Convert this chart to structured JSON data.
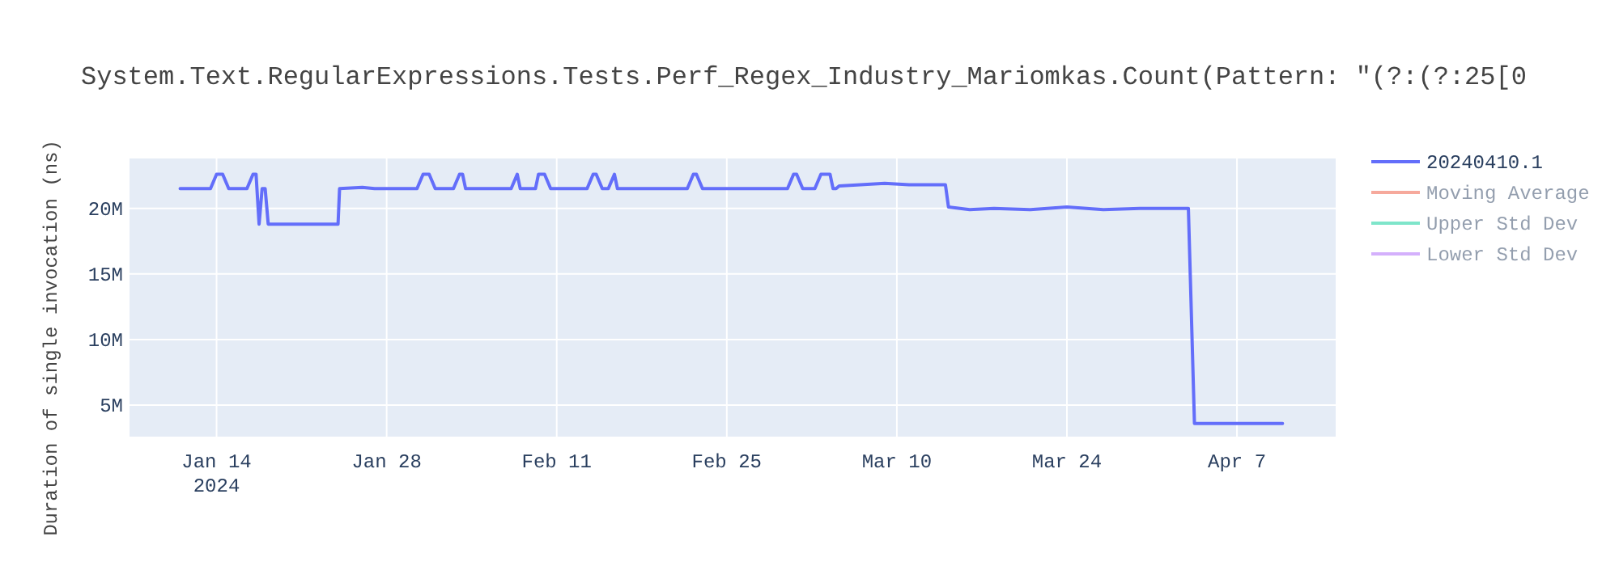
{
  "chart_data": {
    "type": "line",
    "title": "System.Text.RegularExpressions.Tests.Perf_Regex_Industry_Mariomkas.Count(Pattern: \"(?:(?:25[0",
    "ylabel": "Duration of single invocation (ns)",
    "xlim": [
      "2024-01-06T20:00",
      "2024-04-15T03:00"
    ],
    "xticks": [
      {
        "value": "2024-01-14",
        "label": "Jan 14\n2024"
      },
      {
        "value": "2024-01-28",
        "label": "Jan 28"
      },
      {
        "value": "2024-02-11",
        "label": "Feb 11"
      },
      {
        "value": "2024-02-25",
        "label": "Feb 25"
      },
      {
        "value": "2024-03-10",
        "label": "Mar 10"
      },
      {
        "value": "2024-03-24",
        "label": "Mar 24"
      },
      {
        "value": "2024-04-07",
        "label": "Apr 7"
      }
    ],
    "ylim": [
      2600000,
      23800000
    ],
    "yticks": [
      {
        "value": 5000000,
        "label": "5M"
      },
      {
        "value": 10000000,
        "label": "10M"
      },
      {
        "value": 15000000,
        "label": "15M"
      },
      {
        "value": 20000000,
        "label": "20M"
      }
    ],
    "grid": true,
    "legend": "right",
    "series": [
      {
        "name": "20240410.1",
        "color": "#636efa",
        "x": [
          "2024-01-11T00:00",
          "2024-01-13T12:00",
          "2024-01-14T00:00",
          "2024-01-14T12:00",
          "2024-01-15T00:00",
          "2024-01-16T12:00",
          "2024-01-17T00:00",
          "2024-01-17T06:00",
          "2024-01-17T12:00",
          "2024-01-17T18:00",
          "2024-01-18T00:00",
          "2024-01-18T06:00",
          "2024-01-24T00:00",
          "2024-01-24T03:00",
          "2024-01-26T00:00",
          "2024-01-27T00:00",
          "2024-01-30T12:00",
          "2024-01-31T00:00",
          "2024-01-31T12:00",
          "2024-02-01T00:00",
          "2024-02-02T12:00",
          "2024-02-03T00:00",
          "2024-02-03T06:00",
          "2024-02-03T12:00",
          "2024-02-07T06:00",
          "2024-02-07T18:00",
          "2024-02-08T00:00",
          "2024-02-09T06:00",
          "2024-02-09T12:00",
          "2024-02-10T00:00",
          "2024-02-10T12:00",
          "2024-02-13T12:00",
          "2024-02-14T00:00",
          "2024-02-14T06:00",
          "2024-02-14T18:00",
          "2024-02-15T06:00",
          "2024-02-15T18:00",
          "2024-02-16T00:00",
          "2024-02-21T18:00",
          "2024-02-22T06:00",
          "2024-02-22T12:00",
          "2024-02-23T00:00",
          "2024-03-01T00:00",
          "2024-03-01T12:00",
          "2024-03-01T18:00",
          "2024-03-02T06:00",
          "2024-03-03T06:00",
          "2024-03-03T18:00",
          "2024-03-04T12:00",
          "2024-03-04T18:00",
          "2024-03-05T00:00",
          "2024-03-05T06:00",
          "2024-03-07T00:00",
          "2024-03-09T00:00",
          "2024-03-11T00:00",
          "2024-03-13T00:00",
          "2024-03-14T00:00",
          "2024-03-14T06:00",
          "2024-03-16T00:00",
          "2024-03-18T00:00",
          "2024-03-21T00:00",
          "2024-03-24T00:00",
          "2024-03-27T00:00",
          "2024-03-30T00:00",
          "2024-04-03T00:00",
          "2024-04-03T12:00",
          "2024-04-10T18:00"
        ],
        "values": [
          21500000,
          21500000,
          22600000,
          22600000,
          21500000,
          21500000,
          22600000,
          22600000,
          18800000,
          21500000,
          21500000,
          18800000,
          18800000,
          21500000,
          21600000,
          21500000,
          21500000,
          22600000,
          22600000,
          21500000,
          21500000,
          22600000,
          22600000,
          21500000,
          21500000,
          22600000,
          21500000,
          21500000,
          22600000,
          22600000,
          21500000,
          21500000,
          22600000,
          22600000,
          21500000,
          21500000,
          22600000,
          21500000,
          21500000,
          22600000,
          22600000,
          21500000,
          21500000,
          22600000,
          22600000,
          21500000,
          21500000,
          22600000,
          22600000,
          21500000,
          21500000,
          21700000,
          21800000,
          21900000,
          21800000,
          21800000,
          21800000,
          20100000,
          19900000,
          20000000,
          19900000,
          20100000,
          19900000,
          20000000,
          20000000,
          3600000,
          3600000
        ]
      },
      {
        "name": "Moving Average",
        "color": "#ef553b"
      },
      {
        "name": "Upper Std Dev",
        "color": "#00cc96"
      },
      {
        "name": "Lower Std Dev",
        "color": "#ab63fa"
      }
    ]
  }
}
